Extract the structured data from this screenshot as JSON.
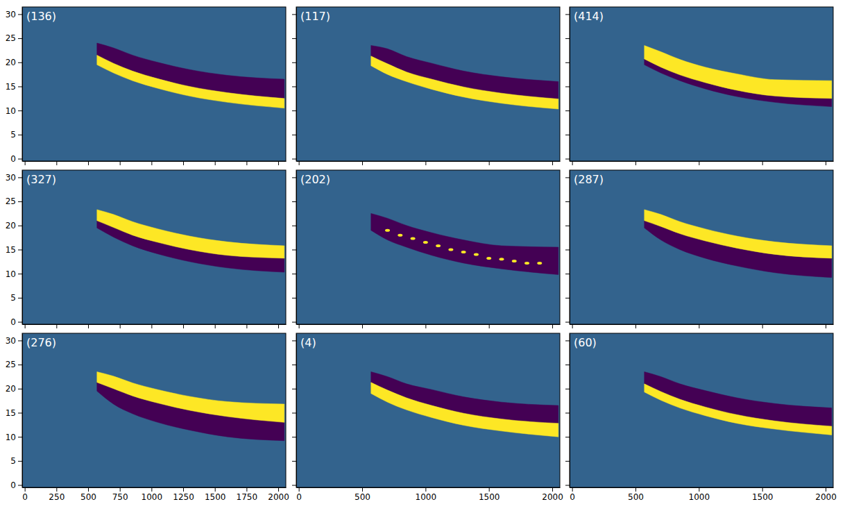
{
  "chart_data": [
    {
      "type": "area",
      "title": "(136)",
      "xlim": [
        -20,
        2060
      ],
      "ylim": [
        -0.5,
        31.5
      ],
      "xticks": [
        0,
        250,
        500,
        750,
        1000,
        1250,
        1500,
        1750,
        2000
      ],
      "yticks": [
        0,
        5,
        10,
        15,
        20,
        25,
        30
      ],
      "tick_labels": "y",
      "x": [
        570,
        700,
        850,
        1050,
        1300,
        1600,
        2048
      ],
      "series": [
        {
          "color": "#440154",
          "base": [
            21.5,
            19.8,
            18.2,
            16.6,
            15.0,
            13.7,
            12.5
          ],
          "values": [
            24,
            23,
            21.5,
            20,
            18.5,
            17.3,
            16.5
          ]
        },
        {
          "color": "#fde725",
          "base": [
            19.5,
            17.8,
            16.2,
            14.6,
            13.0,
            11.7,
            10.5
          ],
          "values": [
            21.5,
            19.8,
            18.2,
            16.6,
            15.0,
            13.7,
            12.5
          ]
        }
      ]
    },
    {
      "type": "area",
      "title": "(117)",
      "xlim": [
        -20,
        2060
      ],
      "ylim": [
        -0.5,
        31.5
      ],
      "xticks": [
        0,
        500,
        1000,
        1500,
        2000
      ],
      "yticks": [
        0,
        5,
        10,
        15,
        20,
        25,
        30
      ],
      "tick_labels": false,
      "x": [
        570,
        700,
        850,
        1050,
        1300,
        1600,
        2048
      ],
      "series": [
        {
          "color": "#440154",
          "base": [
            21.3,
            19.7,
            18.0,
            16.5,
            14.9,
            13.6,
            12.4
          ],
          "values": [
            23.5,
            22.8,
            21.2,
            19.8,
            18.2,
            17.0,
            16.0
          ]
        },
        {
          "color": "#fde725",
          "base": [
            19.3,
            17.5,
            16.0,
            14.4,
            12.8,
            11.5,
            10.3
          ],
          "values": [
            21.3,
            19.7,
            18.0,
            16.5,
            14.9,
            13.6,
            12.4
          ]
        }
      ]
    },
    {
      "type": "area",
      "title": "(414)",
      "xlim": [
        -20,
        2060
      ],
      "ylim": [
        -0.5,
        31.5
      ],
      "xticks": [
        0,
        500,
        1000,
        1500,
        2000
      ],
      "yticks": [
        0,
        5,
        10,
        15,
        20,
        25,
        30
      ],
      "tick_labels": false,
      "x": [
        570,
        700,
        850,
        1050,
        1300,
        1600,
        2048
      ],
      "series": [
        {
          "color": "#440154",
          "base": [
            19.5,
            17.8,
            16.2,
            14.5,
            12.9,
            11.7,
            10.8
          ],
          "values": [
            20.7,
            19.0,
            17.4,
            15.8,
            14.2,
            13.0,
            12.5
          ]
        },
        {
          "color": "#fde725",
          "base": [
            20.7,
            19.0,
            17.4,
            15.8,
            14.2,
            13.0,
            12.5
          ],
          "values": [
            23.5,
            22.2,
            20.6,
            19.0,
            17.6,
            16.4,
            16.2
          ]
        }
      ]
    },
    {
      "type": "area",
      "title": "(327)",
      "xlim": [
        -20,
        2060
      ],
      "ylim": [
        -0.5,
        31.5
      ],
      "xticks": [
        0,
        250,
        500,
        750,
        1000,
        1250,
        1500,
        1750,
        2000
      ],
      "yticks": [
        0,
        5,
        10,
        15,
        20,
        25,
        30
      ],
      "tick_labels": "y",
      "x": [
        570,
        700,
        850,
        1050,
        1300,
        1600,
        2048
      ],
      "series": [
        {
          "color": "#440154",
          "base": [
            19.5,
            17.6,
            15.8,
            14.1,
            12.5,
            11.2,
            10.3
          ],
          "values": [
            21,
            19.6,
            18.0,
            16.5,
            15.0,
            13.8,
            13.2
          ]
        },
        {
          "color": "#fde725",
          "base": [
            21,
            19.6,
            18.0,
            16.5,
            15.0,
            13.8,
            13.2
          ],
          "values": [
            23.3,
            22.3,
            20.8,
            19.3,
            17.8,
            16.6,
            15.8
          ]
        }
      ]
    },
    {
      "type": "area",
      "title": "(202)",
      "xlim": [
        -20,
        2060
      ],
      "ylim": [
        -0.5,
        31.5
      ],
      "xticks": [
        0,
        500,
        1000,
        1500,
        2000
      ],
      "yticks": [
        0,
        5,
        10,
        15,
        20,
        25,
        30
      ],
      "tick_labels": false,
      "x": [
        570,
        700,
        850,
        1050,
        1300,
        1600,
        2048
      ],
      "series": [
        {
          "color": "#440154",
          "base": [
            19,
            17,
            15.5,
            13.8,
            12.2,
            11,
            9.8
          ],
          "values": [
            22.5,
            21.5,
            20,
            18.5,
            17,
            15.8,
            15.5
          ]
        },
        {
          "type": "scatter",
          "color": "#fde725",
          "x": [
            700,
            800,
            900,
            1000,
            1100,
            1200,
            1300,
            1400,
            1500,
            1600,
            1700,
            1800,
            1900
          ],
          "values": [
            19,
            18,
            17.3,
            16.5,
            15.8,
            15,
            14.5,
            14,
            13.2,
            13,
            12.6,
            12.2,
            12.2
          ]
        }
      ]
    },
    {
      "type": "area",
      "title": "(287)",
      "xlim": [
        -20,
        2060
      ],
      "ylim": [
        -0.5,
        31.5
      ],
      "xticks": [
        0,
        500,
        1000,
        1500,
        2000
      ],
      "yticks": [
        0,
        5,
        10,
        15,
        20,
        25,
        30
      ],
      "tick_labels": false,
      "x": [
        570,
        700,
        850,
        1050,
        1300,
        1600,
        2048
      ],
      "series": [
        {
          "color": "#440154",
          "base": [
            19.5,
            17,
            15,
            13.2,
            11.6,
            10.2,
            9.2
          ],
          "values": [
            21,
            19.8,
            18.3,
            16.8,
            15.3,
            14,
            13.2
          ]
        },
        {
          "color": "#fde725",
          "base": [
            21,
            19.8,
            18.3,
            16.8,
            15.3,
            14,
            13.2
          ],
          "values": [
            23.3,
            22.3,
            20.8,
            19.3,
            17.8,
            16.6,
            15.8
          ]
        }
      ]
    },
    {
      "type": "area",
      "title": "(276)",
      "xlim": [
        -20,
        2060
      ],
      "ylim": [
        -0.5,
        31.5
      ],
      "xticks": [
        0,
        250,
        500,
        750,
        1000,
        1250,
        1500,
        1750,
        2000
      ],
      "yticks": [
        0,
        5,
        10,
        15,
        20,
        25,
        30
      ],
      "x": [
        570,
        700,
        850,
        1050,
        1300,
        1600,
        2048
      ],
      "series": [
        {
          "color": "#440154",
          "base": [
            19.5,
            16.8,
            14.8,
            13,
            11.4,
            10,
            9.2
          ],
          "values": [
            21.3,
            20,
            18.5,
            17,
            15.5,
            14.2,
            13.0
          ]
        },
        {
          "color": "#fde725",
          "base": [
            21.3,
            20,
            18.5,
            17,
            15.5,
            14.2,
            13.0
          ],
          "values": [
            23.5,
            22.6,
            21.2,
            19.8,
            18.4,
            17.3,
            16.8
          ]
        }
      ]
    },
    {
      "type": "area",
      "title": "(4)",
      "xlim": [
        -20,
        2060
      ],
      "ylim": [
        -0.5,
        31.5
      ],
      "xticks": [
        0,
        500,
        1000,
        1500,
        2000
      ],
      "yticks": [
        0,
        5,
        10,
        15,
        20,
        25,
        30
      ],
      "tick_labels": "x",
      "x": [
        570,
        700,
        850,
        1050,
        1300,
        1600,
        2048
      ],
      "series": [
        {
          "color": "#440154",
          "base": [
            21.3,
            19.7,
            18.1,
            16.5,
            14.9,
            13.7,
            12.8
          ],
          "values": [
            23.5,
            22.5,
            21,
            19.8,
            18.3,
            17.2,
            16.5
          ]
        },
        {
          "color": "#fde725",
          "base": [
            19,
            17.2,
            15.6,
            14,
            12.4,
            11.2,
            10
          ],
          "values": [
            21.3,
            19.7,
            18.1,
            16.5,
            14.9,
            13.7,
            12.8
          ]
        }
      ]
    },
    {
      "type": "area",
      "title": "(60)",
      "xlim": [
        -20,
        2060
      ],
      "ylim": [
        -0.5,
        31.5
      ],
      "xticks": [
        0,
        500,
        1000,
        1500,
        2000
      ],
      "yticks": [
        0,
        5,
        10,
        15,
        20,
        25,
        30
      ],
      "tick_labels": "x",
      "x": [
        570,
        700,
        850,
        1050,
        1300,
        1600,
        2048
      ],
      "series": [
        {
          "color": "#440154",
          "base": [
            21,
            19.4,
            17.8,
            16.2,
            14.6,
            13.3,
            12.2
          ],
          "values": [
            23.5,
            22.5,
            21,
            19.6,
            18.1,
            16.9,
            16.0
          ]
        },
        {
          "color": "#fde725",
          "base": [
            19.3,
            17.6,
            16.0,
            14.4,
            12.8,
            11.6,
            10.4
          ],
          "values": [
            21,
            19.4,
            17.8,
            16.2,
            14.6,
            13.3,
            12.2
          ]
        }
      ]
    }
  ]
}
